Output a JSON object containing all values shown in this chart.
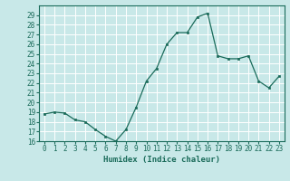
{
  "xlabel": "Humidex (Indice chaleur)",
  "x": [
    0,
    1,
    2,
    3,
    4,
    5,
    6,
    7,
    8,
    9,
    10,
    11,
    12,
    13,
    14,
    15,
    16,
    17,
    18,
    19,
    20,
    21,
    22,
    23
  ],
  "y": [
    18.8,
    19.0,
    18.9,
    18.2,
    18.0,
    17.2,
    16.5,
    16.0,
    17.2,
    19.5,
    22.2,
    23.5,
    26.0,
    27.2,
    27.2,
    28.8,
    29.2,
    24.8,
    24.5,
    24.5,
    24.8,
    22.2,
    21.5,
    22.7
  ],
  "ylim": [
    16,
    30
  ],
  "yticks": [
    16,
    17,
    18,
    19,
    20,
    21,
    22,
    23,
    24,
    25,
    26,
    27,
    28,
    29
  ],
  "line_color": "#1a6b5a",
  "marker_color": "#1a6b5a",
  "bg_color": "#c8e8e8",
  "grid_color": "#ffffff",
  "tick_color": "#1a6b5a",
  "xlabel_color": "#1a6b5a",
  "font_size_ticks": 5.5,
  "font_size_xlabel": 6.5
}
